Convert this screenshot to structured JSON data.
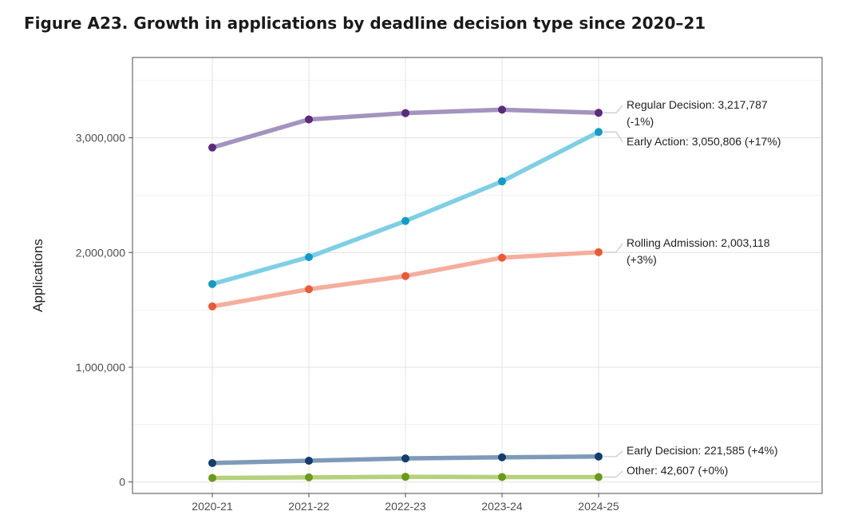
{
  "figure_title": "Figure A23. Growth in applications by deadline decision type since 2020–21",
  "chart_data": {
    "type": "line",
    "title": "",
    "xlabel": "",
    "ylabel": "Applications",
    "categories": [
      "2020-21",
      "2021-22",
      "2022-23",
      "2023-24",
      "2024-25"
    ],
    "yticks": [
      0,
      1000000,
      2000000,
      3000000
    ],
    "ytick_labels": [
      "0",
      "1,000,000",
      "2,000,000",
      "3,000,000"
    ],
    "ylim": [
      -100000,
      3700000
    ],
    "grid": true,
    "legend": "direct labels at line ends",
    "series": [
      {
        "name": "Regular Decision",
        "values": [
          2915000,
          3160000,
          3215000,
          3245000,
          3217787
        ],
        "line_color": "#a393bf",
        "point_color": "#5b2a7e",
        "end_label": [
          "Regular Decision: 3,217,787",
          "(-1%)"
        ]
      },
      {
        "name": "Early Action",
        "values": [
          1725000,
          1960000,
          2275000,
          2620000,
          3050806
        ],
        "line_color": "#7ecfe6",
        "point_color": "#119cc8",
        "end_label": [
          "Early Action: 3,050,806 (+17%)"
        ]
      },
      {
        "name": "Rolling Admission",
        "values": [
          1530000,
          1680000,
          1795000,
          1955000,
          2003118
        ],
        "line_color": "#f5ad9c",
        "point_color": "#ea5a35",
        "end_label": [
          "Rolling Admission: 2,003,118",
          "(+3%)"
        ]
      },
      {
        "name": "Early Decision",
        "values": [
          165000,
          185000,
          205000,
          215000,
          221585
        ],
        "line_color": "#7e9ab9",
        "point_color": "#133d6b",
        "end_label": [
          "Early Decision: 221,585 (+4%)"
        ]
      },
      {
        "name": "Other",
        "values": [
          35000,
          40000,
          45000,
          43000,
          42607
        ],
        "line_color": "#b5d17b",
        "point_color": "#6a9a1c",
        "end_label": [
          "Other: 42,607 (+0%)"
        ]
      }
    ]
  }
}
